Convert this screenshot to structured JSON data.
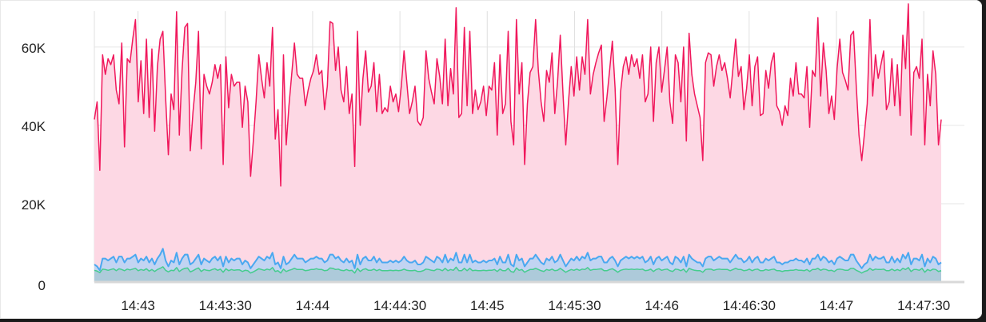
{
  "chart_data": {
    "type": "area",
    "title": "",
    "xlabel": "",
    "ylabel": "",
    "ylim": [
      0,
      72000
    ],
    "y_ticks": [
      {
        "value": 0,
        "label": "0"
      },
      {
        "value": 20000,
        "label": "20K"
      },
      {
        "value": 40000,
        "label": "40K"
      },
      {
        "value": 60000,
        "label": "60K"
      }
    ],
    "x_range": [
      "14:42:45",
      "14:47:36"
    ],
    "x_ticks": [
      {
        "time": "14:43:00",
        "label": "14:43"
      },
      {
        "time": "14:43:30",
        "label": "14:43:30"
      },
      {
        "time": "14:44:00",
        "label": "14:44"
      },
      {
        "time": "14:44:30",
        "label": "14:44:30"
      },
      {
        "time": "14:45:00",
        "label": "14:45"
      },
      {
        "time": "14:45:30",
        "label": "14:45:30"
      },
      {
        "time": "14:46:00",
        "label": "14:46"
      },
      {
        "time": "14:46:30",
        "label": "14:46:30"
      },
      {
        "time": "14:47:00",
        "label": "14:47"
      },
      {
        "time": "14:47:30",
        "label": "14:47:30"
      }
    ],
    "grid": true,
    "legend": "none",
    "series": [
      {
        "color": "#f0185c",
        "fill": "#fdd8e4",
        "values": [
          41500,
          46000,
          28500,
          58000,
          53000,
          57000,
          55500,
          58000,
          49000,
          45500,
          61000,
          34500,
          57000,
          56000,
          62000,
          67000,
          46000,
          56500,
          43000,
          62000,
          42000,
          59500,
          38500,
          55000,
          62000,
          64000,
          47000,
          32500,
          48000,
          44000,
          69000,
          37500,
          54000,
          65000,
          66000,
          33500,
          43500,
          51000,
          64000,
          34000,
          53000,
          50000,
          48000,
          51000,
          55500,
          52000,
          55500,
          30000,
          57500,
          44500,
          53000,
          50000,
          51000,
          51000,
          39500,
          50000,
          46000,
          27000,
          36000,
          46000,
          58000,
          52000,
          47000,
          56000,
          50000,
          65000,
          36500,
          44000,
          24500,
          58000,
          35000,
          45000,
          53000,
          61000,
          53000,
          52000,
          52000,
          45000,
          49000,
          52000,
          54000,
          58000,
          53000,
          54000,
          44000,
          50000,
          66500,
          66000,
          54000,
          60000,
          49000,
          46000,
          55000,
          43000,
          48000,
          29500,
          64000,
          40000,
          52000,
          59000,
          48500,
          50000,
          56000,
          43500,
          53000,
          43000,
          44500,
          43500,
          50000,
          46000,
          48000,
          43500,
          50000,
          59000,
          51000,
          43000,
          46000,
          50000,
          41000,
          40000,
          42000,
          59000,
          52000,
          48500,
          45500,
          57000,
          52500,
          45500,
          62000,
          45000,
          54500,
          48000,
          70000,
          42000,
          43000,
          65000,
          45000,
          64000,
          43000,
          49000,
          44000,
          46000,
          50000,
          42500,
          50000,
          49000,
          56000,
          37500,
          58000,
          43000,
          45500,
          64000,
          41000,
          35000,
          67000,
          48000,
          56000,
          30000,
          45500,
          53500,
          55000,
          67000,
          54000,
          46000,
          41000,
          54000,
          51000,
          58500,
          43000,
          51000,
          63000,
          48000,
          35000,
          46000,
          55000,
          47500,
          57500,
          49000,
          57500,
          53000,
          67000,
          48000,
          53000,
          56000,
          58500,
          60500,
          41000,
          47000,
          54000,
          61500,
          49500,
          30000,
          48500,
          55000,
          57500,
          53000,
          58000,
          55000,
          57000,
          52000,
          58000,
          46000,
          48000,
          60000,
          41000,
          56000,
          60000,
          48500,
          54000,
          60000,
          46000,
          40500,
          58000,
          56000,
          46000,
          60000,
          36000,
          63500,
          53000,
          48000,
          45000,
          42000,
          31000,
          56000,
          58500,
          58000,
          50000,
          55000,
          58000,
          54000,
          56000,
          52000,
          47000,
          54500,
          62000,
          52500,
          55000,
          44000,
          49500,
          58000,
          45000,
          55000,
          57500,
          42500,
          43000,
          54000,
          49500,
          56000,
          58500,
          45000,
          43500,
          40000,
          45000,
          42500,
          52000,
          47500,
          56000,
          48000,
          48000,
          47000,
          55000,
          39500,
          54000,
          52500,
          67500,
          47500,
          61000,
          54000,
          43000,
          47500,
          41500,
          54500,
          62000,
          53500,
          51500,
          49000,
          63000,
          64000,
          50000,
          37500,
          31000,
          38000,
          45500,
          67000,
          47500,
          58000,
          52000,
          55500,
          59000,
          44000,
          46000,
          57000,
          45000,
          55500,
          42500,
          63000,
          54500,
          71000,
          37500,
          53500,
          55000,
          52000,
          62000,
          35000,
          53000,
          45000,
          59000,
          53000,
          35000,
          41500
        ]
      },
      {
        "color": "#4aa8f0",
        "fill": "#b7d4f4",
        "values": [
          4500,
          4000,
          3000,
          6000,
          6000,
          5500,
          6000,
          6500,
          5000,
          6500,
          6500,
          5000,
          6000,
          6000,
          6500,
          7000,
          5000,
          6000,
          5500,
          6500,
          5000,
          6000,
          4500,
          6000,
          7000,
          8500,
          5500,
          4000,
          5500,
          5000,
          7500,
          4500,
          6000,
          7000,
          7000,
          4500,
          5000,
          6000,
          7000,
          4500,
          6000,
          5500,
          5000,
          6000,
          6500,
          5500,
          6500,
          4000,
          6500,
          5000,
          6000,
          5500,
          6000,
          6000,
          4500,
          5500,
          5000,
          3500,
          4500,
          5500,
          6500,
          6000,
          5500,
          6500,
          6000,
          7500,
          4500,
          5000,
          3500,
          6500,
          4500,
          5000,
          6000,
          7000,
          6000,
          6000,
          6000,
          5000,
          5500,
          6000,
          6000,
          6500,
          6000,
          6000,
          5000,
          5500,
          7000,
          7000,
          6000,
          6500,
          5500,
          5000,
          6000,
          5000,
          5500,
          3500,
          7000,
          4500,
          6000,
          6500,
          5500,
          5500,
          6500,
          5000,
          6000,
          5000,
          5000,
          5000,
          5500,
          5000,
          5500,
          5000,
          5500,
          6500,
          5500,
          5000,
          5000,
          5500,
          4500,
          4500,
          5000,
          6500,
          6000,
          5500,
          5000,
          6500,
          6000,
          5000,
          7000,
          5000,
          6000,
          5500,
          7500,
          5000,
          5000,
          7000,
          5000,
          7000,
          5000,
          5500,
          5000,
          5000,
          5500,
          5000,
          5500,
          5500,
          6000,
          4500,
          6500,
          5000,
          5000,
          7000,
          4500,
          4000,
          7000,
          5500,
          6000,
          4000,
          5000,
          6000,
          6000,
          7000,
          6000,
          5000,
          4500,
          6000,
          5500,
          6500,
          5000,
          5500,
          7000,
          5500,
          4000,
          5000,
          6000,
          5500,
          6500,
          5500,
          6500,
          6000,
          7500,
          5500,
          6000,
          6000,
          6500,
          6500,
          5000,
          5000,
          6000,
          6500,
          5500,
          4000,
          5500,
          6000,
          6500,
          6000,
          6500,
          6000,
          6500,
          6000,
          6500,
          5000,
          5500,
          6500,
          4500,
          6000,
          6500,
          5500,
          6000,
          6500,
          5000,
          4500,
          6500,
          6000,
          5000,
          6500,
          4000,
          7000,
          6000,
          5500,
          5000,
          5000,
          4000,
          6000,
          6500,
          6500,
          5500,
          6000,
          6500,
          6000,
          6000,
          6000,
          5000,
          6000,
          7000,
          6000,
          6000,
          5000,
          5500,
          6500,
          5000,
          6000,
          6500,
          5000,
          5000,
          6000,
          5500,
          6000,
          6500,
          5000,
          5000,
          4500,
          5000,
          5000,
          5500,
          5500,
          6000,
          5500,
          5500,
          5000,
          6000,
          4500,
          6000,
          6000,
          7000,
          5500,
          6500,
          6000,
          5000,
          5500,
          4500,
          6000,
          6500,
          6000,
          5500,
          5500,
          7000,
          7000,
          5500,
          4500,
          3500,
          4500,
          5000,
          7000,
          5500,
          6500,
          6000,
          6000,
          6500,
          5000,
          5000,
          6500,
          5000,
          6000,
          5000,
          7000,
          6000,
          7500,
          4500,
          6000,
          6000,
          5500,
          7000,
          4000,
          6000,
          5000,
          6500,
          6000,
          4500,
          5000
        ]
      },
      {
        "color": "#45cc8e",
        "fill": "#a9c8d6",
        "values": [
          3000,
          2800,
          2400,
          3300,
          3200,
          3000,
          3200,
          3400,
          2900,
          3400,
          3200,
          2900,
          3300,
          3100,
          3300,
          3500,
          2900,
          3200,
          3000,
          3400,
          2800,
          3200,
          2700,
          3200,
          3500,
          3900,
          3000,
          2600,
          3000,
          2900,
          3700,
          2700,
          3200,
          3500,
          3600,
          2600,
          2900,
          3300,
          3600,
          2700,
          3200,
          3000,
          2900,
          3200,
          3400,
          3000,
          3300,
          2500,
          3400,
          2900,
          3200,
          3000,
          3100,
          3100,
          2700,
          3000,
          2900,
          2300,
          2600,
          3000,
          3400,
          3200,
          3000,
          3300,
          3100,
          3700,
          2700,
          2900,
          2300,
          3300,
          2700,
          3000,
          3200,
          3500,
          3200,
          3200,
          3200,
          2900,
          3000,
          3200,
          3200,
          3400,
          3200,
          3200,
          2900,
          3000,
          3600,
          3500,
          3200,
          3300,
          3000,
          2900,
          3200,
          2900,
          3000,
          2300,
          3500,
          2700,
          3200,
          3400,
          3000,
          3000,
          3300,
          2900,
          3200,
          2900,
          2900,
          2900,
          3000,
          2900,
          3000,
          2900,
          3000,
          3300,
          3000,
          2900,
          2900,
          3000,
          2700,
          2700,
          2900,
          3300,
          3200,
          3000,
          2900,
          3300,
          3200,
          2900,
          3500,
          2900,
          3200,
          3000,
          3800,
          2900,
          2900,
          3500,
          2900,
          3500,
          2900,
          3000,
          2900,
          2900,
          3000,
          2900,
          3000,
          3000,
          3200,
          2700,
          3300,
          2900,
          2900,
          3500,
          2700,
          2500,
          3600,
          3000,
          3200,
          2500,
          2900,
          3200,
          3200,
          3500,
          3200,
          2900,
          2700,
          3200,
          3000,
          3300,
          2900,
          3000,
          3500,
          3000,
          2500,
          2900,
          3200,
          3000,
          3300,
          3000,
          3300,
          3200,
          3700,
          3000,
          3200,
          3200,
          3300,
          3400,
          2900,
          2900,
          3200,
          3400,
          3000,
          2500,
          3000,
          3200,
          3300,
          3200,
          3300,
          3200,
          3300,
          3200,
          3300,
          2900,
          3000,
          3300,
          2700,
          3200,
          3400,
          3000,
          3200,
          3300,
          2900,
          2700,
          3300,
          3200,
          2900,
          3300,
          2500,
          3500,
          3200,
          3000,
          2900,
          2900,
          2500,
          3200,
          3300,
          3300,
          3000,
          3200,
          3300,
          3200,
          3200,
          3200,
          2900,
          3200,
          3500,
          3200,
          3200,
          2900,
          3000,
          3300,
          2900,
          3200,
          3300,
          2900,
          2900,
          3200,
          3000,
          3200,
          3300,
          2900,
          2900,
          2700,
          2900,
          2900,
          3000,
          3000,
          3200,
          3000,
          3000,
          2900,
          3200,
          2700,
          3200,
          3200,
          3500,
          3000,
          3300,
          3200,
          2900,
          3000,
          2700,
          3200,
          3300,
          3200,
          3000,
          3000,
          3500,
          3500,
          3000,
          2700,
          2300,
          2700,
          2900,
          3500,
          3000,
          3300,
          3200,
          3200,
          3300,
          2900,
          2900,
          3300,
          2900,
          3200,
          2900,
          3500,
          3200,
          3700,
          2700,
          3200,
          3200,
          3000,
          3500,
          2500,
          3200,
          2900,
          3300,
          3200,
          2700,
          2900
        ]
      }
    ]
  }
}
